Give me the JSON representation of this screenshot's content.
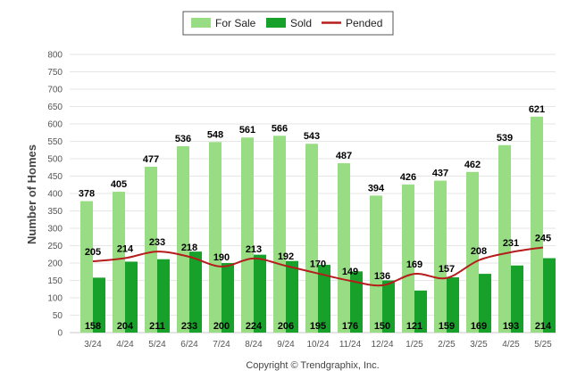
{
  "chart_data": {
    "type": "bar",
    "title": "",
    "xlabel": "",
    "ylabel": "Number of Homes",
    "ylim": [
      0,
      800
    ],
    "yticks": [
      0,
      50,
      100,
      150,
      200,
      250,
      300,
      350,
      400,
      450,
      500,
      550,
      600,
      650,
      700,
      750,
      800
    ],
    "categories": [
      "3/24",
      "4/24",
      "5/24",
      "6/24",
      "7/24",
      "8/24",
      "9/24",
      "10/24",
      "11/24",
      "12/24",
      "1/25",
      "2/25",
      "3/25",
      "4/25",
      "5/25"
    ],
    "grid": true,
    "legend_position": "top-center",
    "series": [
      {
        "name": "For Sale",
        "kind": "bar",
        "color": "#98dd83",
        "values": [
          378,
          405,
          477,
          536,
          548,
          561,
          566,
          543,
          487,
          394,
          426,
          437,
          462,
          539,
          621
        ]
      },
      {
        "name": "Sold",
        "kind": "bar",
        "color": "#17a12a",
        "values": [
          158,
          204,
          211,
          233,
          200,
          224,
          206,
          195,
          176,
          150,
          121,
          159,
          169,
          193,
          214
        ]
      },
      {
        "name": "Pended",
        "kind": "line",
        "color": "#b51c1c",
        "values": [
          205,
          214,
          233,
          218,
          190,
          213,
          192,
          170,
          149,
          136,
          169,
          157,
          208,
          231,
          245
        ]
      }
    ]
  },
  "footer": {
    "copyright": "Copyright © Trendgraphix, Inc."
  }
}
